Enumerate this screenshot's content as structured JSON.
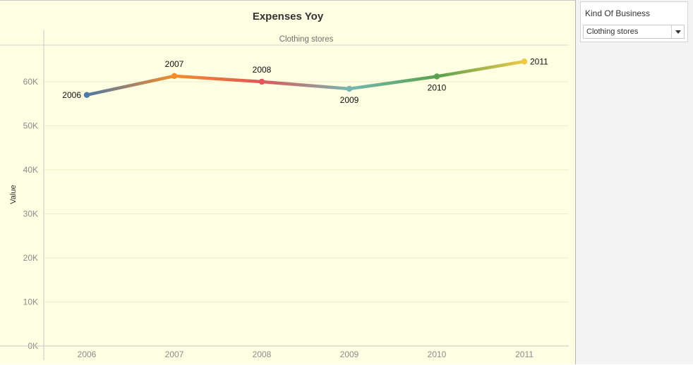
{
  "filter": {
    "title": "Kind Of Business",
    "selected": "Clothing stores",
    "button_icon": "chevron-down-icon"
  },
  "chart_data": {
    "type": "line",
    "title": "Expenses Yoy",
    "facet": "Clothing stores",
    "xlabel": "",
    "ylabel": "Value",
    "categories": [
      "2006",
      "2007",
      "2008",
      "2009",
      "2010",
      "2011"
    ],
    "values": [
      57000,
      61300,
      60000,
      58400,
      61200,
      64600
    ],
    "point_labels": [
      "2006",
      "2007",
      "2008",
      "2009",
      "2010",
      "2011"
    ],
    "point_colors": [
      "#4e79a7",
      "#f28e2b",
      "#e15759",
      "#76b7b2",
      "#59a14f",
      "#edc948"
    ],
    "ylim": [
      0,
      65000
    ],
    "yticks": [
      0,
      10000,
      20000,
      30000,
      40000,
      50000,
      60000
    ],
    "ytick_labels": [
      "0K",
      "10K",
      "20K",
      "30K",
      "40K",
      "50K",
      "60K"
    ],
    "grid": true,
    "legend": "none"
  }
}
